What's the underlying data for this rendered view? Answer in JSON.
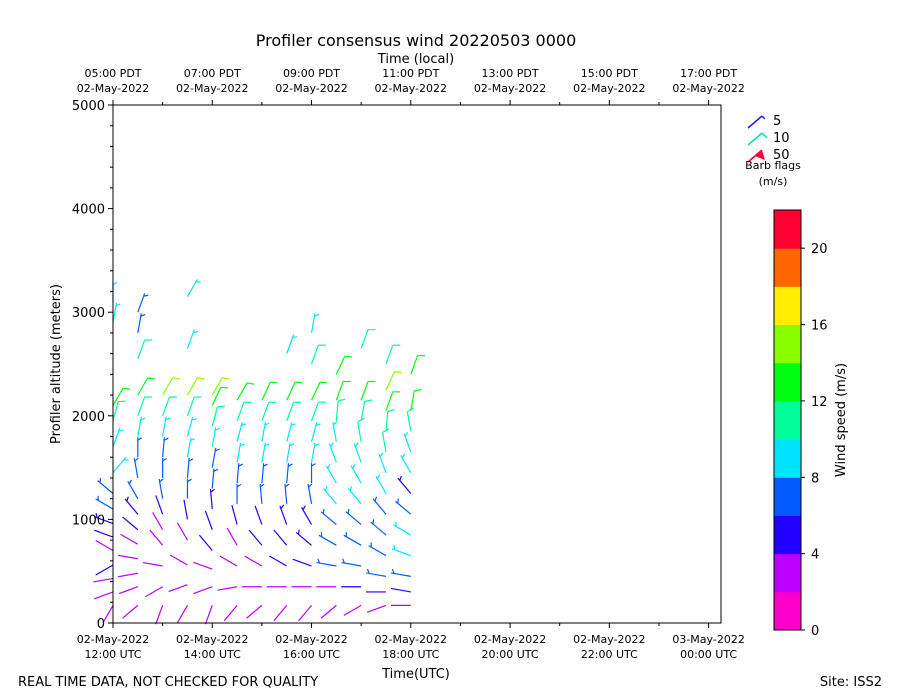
{
  "chart_data": {
    "type": "wind-barb-profile",
    "title": "Profiler consensus wind 20220503 0000",
    "xlabel_top": "Time (local)",
    "xlabel": "Time(UTC)",
    "ylabel": "Profiler altitude (meters)",
    "ylim": [
      0,
      5000
    ],
    "xlim_hours": [
      0,
      12.25
    ],
    "y_ticks": [
      0,
      1000,
      2000,
      3000,
      4000,
      5000
    ],
    "x_ticks_bottom": [
      {
        "hour": 0,
        "line1": "02-May-2022",
        "line2": "12:00 UTC"
      },
      {
        "hour": 2,
        "line1": "02-May-2022",
        "line2": "14:00 UTC"
      },
      {
        "hour": 4,
        "line1": "02-May-2022",
        "line2": "16:00 UTC"
      },
      {
        "hour": 6,
        "line1": "02-May-2022",
        "line2": "18:00 UTC"
      },
      {
        "hour": 8,
        "line1": "02-May-2022",
        "line2": "20:00 UTC"
      },
      {
        "hour": 10,
        "line1": "02-May-2022",
        "line2": "22:00 UTC"
      },
      {
        "hour": 12,
        "line1": "03-May-2022",
        "line2": "00:00 UTC"
      }
    ],
    "x_ticks_top": [
      {
        "hour": 0,
        "line1": "05:00 PDT",
        "line2": "02-May-2022"
      },
      {
        "hour": 2,
        "line1": "07:00 PDT",
        "line2": "02-May-2022"
      },
      {
        "hour": 4,
        "line1": "09:00 PDT",
        "line2": "02-May-2022"
      },
      {
        "hour": 6,
        "line1": "11:00 PDT",
        "line2": "02-May-2022"
      },
      {
        "hour": 8,
        "line1": "13:00 PDT",
        "line2": "02-May-2022"
      },
      {
        "hour": 10,
        "line1": "15:00 PDT",
        "line2": "02-May-2022"
      },
      {
        "hour": 12,
        "line1": "17:00 PDT",
        "line2": "02-May-2022"
      }
    ],
    "barb_legend": {
      "items": [
        {
          "speed": 5,
          "label": "5",
          "color": "#1a1aff"
        },
        {
          "speed": 10,
          "label": "10",
          "color": "#00e6a0"
        },
        {
          "speed": 50,
          "label": "50",
          "color": "#ff0033"
        }
      ],
      "title_line1": "Barb flags",
      "title_line2": "(m/s)"
    },
    "colorbar": {
      "label": "Wind speed (m/s)",
      "range": [
        0,
        22
      ],
      "bands": [
        "#ff00cc",
        "#bb00ff",
        "#2200ff",
        "#005cff",
        "#00e5ff",
        "#00ff99",
        "#00ff11",
        "#88ff00",
        "#ffee00",
        "#ff6600",
        "#ff0033"
      ],
      "ticks": [
        0,
        4,
        8,
        12,
        16,
        20
      ]
    },
    "columns": [
      {
        "hour": 0.0,
        "levels": [
          [
            170,
            2,
            210
          ],
          [
            300,
            3,
            250
          ],
          [
            430,
            3,
            260
          ],
          [
            560,
            4,
            240
          ],
          [
            700,
            3,
            300
          ],
          [
            830,
            4,
            290
          ],
          [
            960,
            5,
            290
          ],
          [
            1100,
            6,
            300
          ],
          [
            1250,
            6,
            310
          ],
          [
            1450,
            8,
            40
          ],
          [
            1700,
            8,
            20
          ],
          [
            1950,
            10,
            15
          ],
          [
            2100,
            13,
            30
          ],
          [
            2900,
            9,
            10
          ],
          [
            3100,
            8,
            0
          ]
        ]
      },
      {
        "hour": 0.5,
        "levels": [
          [
            170,
            2,
            230
          ],
          [
            350,
            2,
            250
          ],
          [
            480,
            3,
            260
          ],
          [
            620,
            3,
            280
          ],
          [
            760,
            3,
            300
          ],
          [
            900,
            4,
            310
          ],
          [
            1050,
            5,
            320
          ],
          [
            1200,
            6,
            330
          ],
          [
            1400,
            7,
            350
          ],
          [
            1600,
            7,
            0
          ],
          [
            1800,
            9,
            10
          ],
          [
            2000,
            11,
            20
          ],
          [
            2200,
            13,
            30
          ],
          [
            2550,
            10,
            20
          ],
          [
            2800,
            7,
            10
          ],
          [
            3000,
            6,
            20
          ]
        ]
      },
      {
        "hour": 1.0,
        "levels": [
          [
            170,
            2,
            200
          ],
          [
            350,
            2,
            240
          ],
          [
            550,
            3,
            280
          ],
          [
            750,
            3,
            320
          ],
          [
            900,
            3,
            330
          ],
          [
            1050,
            4,
            340
          ],
          [
            1200,
            6,
            350
          ],
          [
            1400,
            7,
            0
          ],
          [
            1600,
            7,
            5
          ],
          [
            1800,
            8,
            10
          ],
          [
            2000,
            11,
            20
          ],
          [
            2200,
            14,
            30
          ]
        ]
      },
      {
        "hour": 1.5,
        "levels": [
          [
            170,
            2,
            210
          ],
          [
            370,
            2,
            250
          ],
          [
            560,
            3,
            300
          ],
          [
            800,
            3,
            330
          ],
          [
            1000,
            4,
            350
          ],
          [
            1200,
            6,
            0
          ],
          [
            1400,
            7,
            5
          ],
          [
            1600,
            8,
            10
          ],
          [
            1800,
            9,
            15
          ],
          [
            2000,
            11,
            20
          ],
          [
            2200,
            14,
            30
          ],
          [
            2650,
            9,
            20
          ],
          [
            3150,
            9,
            30
          ]
        ]
      },
      {
        "hour": 2.0,
        "levels": [
          [
            170,
            2,
            200
          ],
          [
            350,
            3,
            250
          ],
          [
            520,
            3,
            290
          ],
          [
            700,
            4,
            320
          ],
          [
            900,
            4,
            340
          ],
          [
            1100,
            5,
            355
          ],
          [
            1300,
            6,
            5
          ],
          [
            1500,
            7,
            10
          ],
          [
            1700,
            8,
            10
          ],
          [
            1900,
            10,
            15
          ],
          [
            2100,
            12,
            25
          ],
          [
            2200,
            14,
            30
          ]
        ]
      },
      {
        "hour": 2.5,
        "levels": [
          [
            170,
            2,
            220
          ],
          [
            350,
            3,
            260
          ],
          [
            550,
            3,
            300
          ],
          [
            750,
            3,
            330
          ],
          [
            950,
            4,
            345
          ],
          [
            1150,
            6,
            0
          ],
          [
            1350,
            7,
            5
          ],
          [
            1550,
            8,
            10
          ],
          [
            1750,
            9,
            15
          ],
          [
            1950,
            11,
            20
          ],
          [
            2150,
            13,
            30
          ]
        ]
      },
      {
        "hour": 3.0,
        "levels": [
          [
            170,
            2,
            230
          ],
          [
            350,
            3,
            270
          ],
          [
            550,
            3,
            300
          ],
          [
            750,
            4,
            320
          ],
          [
            950,
            4,
            340
          ],
          [
            1150,
            6,
            355
          ],
          [
            1350,
            7,
            5
          ],
          [
            1550,
            8,
            10
          ],
          [
            1750,
            9,
            10
          ],
          [
            1950,
            11,
            20
          ],
          [
            2150,
            13,
            25
          ]
        ]
      },
      {
        "hour": 3.5,
        "levels": [
          [
            170,
            2,
            220
          ],
          [
            350,
            3,
            270
          ],
          [
            550,
            4,
            300
          ],
          [
            750,
            4,
            320
          ],
          [
            950,
            5,
            340
          ],
          [
            1150,
            6,
            355
          ],
          [
            1350,
            7,
            5
          ],
          [
            1550,
            8,
            10
          ],
          [
            1750,
            9,
            15
          ],
          [
            1950,
            11,
            20
          ],
          [
            2150,
            13,
            25
          ],
          [
            2600,
            9,
            20
          ]
        ]
      },
      {
        "hour": 4.0,
        "levels": [
          [
            170,
            2,
            220
          ],
          [
            350,
            3,
            270
          ],
          [
            550,
            4,
            290
          ],
          [
            750,
            5,
            310
          ],
          [
            950,
            5,
            330
          ],
          [
            1150,
            7,
            350
          ],
          [
            1350,
            7,
            0
          ],
          [
            1550,
            8,
            10
          ],
          [
            1750,
            9,
            15
          ],
          [
            1950,
            11,
            20
          ],
          [
            2150,
            13,
            25
          ],
          [
            2500,
            10,
            20
          ],
          [
            2800,
            9,
            10
          ]
        ]
      },
      {
        "hour": 4.5,
        "levels": [
          [
            170,
            2,
            230
          ],
          [
            350,
            3,
            270
          ],
          [
            550,
            6,
            280
          ],
          [
            750,
            7,
            300
          ],
          [
            950,
            7,
            310
          ],
          [
            1150,
            8,
            320
          ],
          [
            1350,
            8,
            330
          ],
          [
            1550,
            8,
            340
          ],
          [
            1750,
            9,
            350
          ],
          [
            1950,
            10,
            5
          ],
          [
            2150,
            12,
            20
          ],
          [
            2400,
            13,
            25
          ]
        ]
      },
      {
        "hour": 5.0,
        "levels": [
          [
            170,
            3,
            240
          ],
          [
            350,
            4,
            270
          ],
          [
            550,
            6,
            280
          ],
          [
            750,
            7,
            300
          ],
          [
            950,
            7,
            310
          ],
          [
            1150,
            8,
            320
          ],
          [
            1350,
            8,
            330
          ],
          [
            1550,
            9,
            340
          ],
          [
            1750,
            10,
            350
          ],
          [
            1950,
            11,
            10
          ],
          [
            2150,
            13,
            20
          ],
          [
            2650,
            10,
            20
          ]
        ]
      },
      {
        "hour": 5.5,
        "levels": [
          [
            170,
            3,
            250
          ],
          [
            300,
            4,
            270
          ],
          [
            450,
            6,
            280
          ],
          [
            650,
            7,
            300
          ],
          [
            850,
            7,
            310
          ],
          [
            1050,
            7,
            320
          ],
          [
            1250,
            8,
            330
          ],
          [
            1450,
            9,
            340
          ],
          [
            1650,
            10,
            350
          ],
          [
            1850,
            11,
            5
          ],
          [
            2050,
            13,
            20
          ],
          [
            2250,
            14,
            25
          ],
          [
            2500,
            10,
            20
          ]
        ]
      },
      {
        "hour": 6.0,
        "levels": [
          [
            170,
            3,
            270
          ],
          [
            300,
            4,
            280
          ],
          [
            450,
            6,
            280
          ],
          [
            650,
            8,
            290
          ],
          [
            850,
            8,
            300
          ],
          [
            1050,
            6,
            310
          ],
          [
            1250,
            5,
            320
          ],
          [
            1450,
            8,
            330
          ],
          [
            1650,
            9,
            340
          ],
          [
            1850,
            11,
            350
          ],
          [
            2050,
            13,
            10
          ],
          [
            2400,
            12,
            20
          ]
        ]
      }
    ]
  },
  "footer": {
    "disclaimer": "REAL TIME DATA, NOT CHECKED FOR QUALITY",
    "site": "Site: ISS2"
  }
}
